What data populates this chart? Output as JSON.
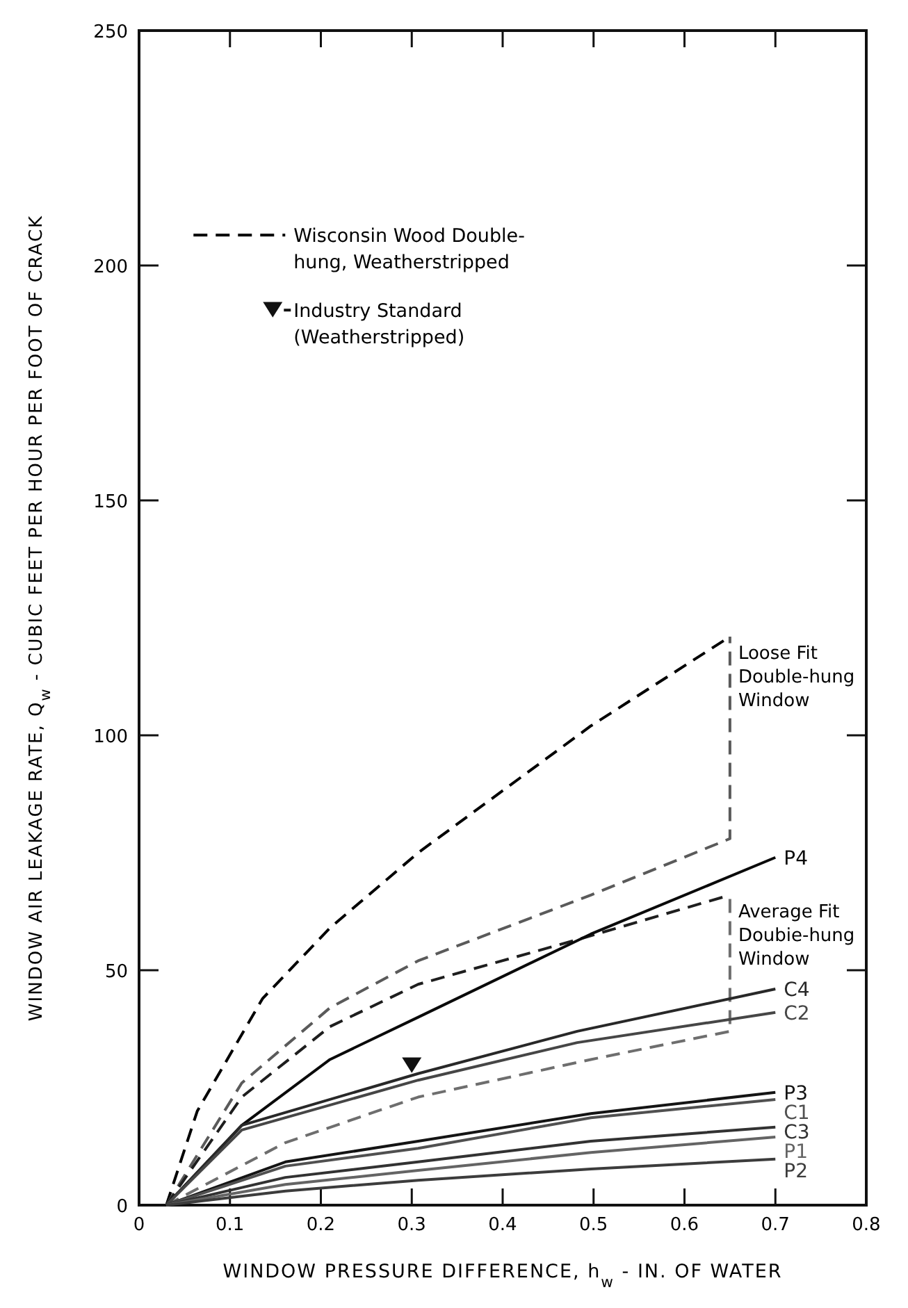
{
  "chart_data": {
    "type": "line",
    "xlabel": "WINDOW PRESSURE DIFFERENCE, h$_{w}$ - IN. OF WATER",
    "ylabel": "WINDOW AIR LEAKAGE RATE, Q$_{w}$ - CUBIC FEET PER HOUR PER FOOT OF CRACK",
    "xlim": [
      0,
      0.8
    ],
    "xticks": [
      0,
      0.1,
      0.2,
      0.3,
      0.4,
      0.5,
      0.6,
      0.7,
      0.8
    ],
    "ylim": [
      0,
      250
    ],
    "yticks": [
      0,
      50,
      100,
      150,
      200,
      250
    ],
    "grid": false,
    "legend": "top left",
    "series": [
      {
        "name": "Wisconsin Wood Double-hung, Weatherstripped",
        "color": "#000000",
        "line_style": "dashed",
        "x": [
          0.03,
          0.064,
          0.136,
          0.21,
          0.307,
          0.497,
          0.65
        ],
        "values": [
          0,
          20,
          44,
          59,
          75,
          102,
          121
        ]
      },
      {
        "color": "#5a5a5a",
        "line_style": "dashed",
        "x": [
          0.03,
          0.113,
          0.21,
          0.307,
          0.497,
          0.65,
          0.65
        ],
        "values": [
          0,
          26,
          42,
          52,
          66,
          78,
          121
        ]
      },
      {
        "color": "#1e1e1e",
        "line_style": "dashed",
        "x": [
          0.03,
          0.113,
          0.21,
          0.307,
          0.482,
          0.65
        ],
        "values": [
          0,
          23,
          38,
          47,
          56.5,
          66
        ]
      },
      {
        "color": "#6e6e6e",
        "line_style": "dashed",
        "x": [
          0.03,
          0.161,
          0.307,
          0.497,
          0.65,
          0.65
        ],
        "values": [
          0,
          13.3,
          23,
          31,
          37,
          66
        ]
      },
      {
        "name": "P4",
        "color": "#0a0a0a",
        "line_style": "solid",
        "x": [
          0.03,
          0.113,
          0.21,
          0.307,
          0.497,
          0.7
        ],
        "values": [
          0,
          17,
          31,
          40,
          57.7,
          74
        ]
      },
      {
        "name": "C4",
        "color": "#282828",
        "line_style": "solid",
        "x": [
          0.03,
          0.113,
          0.307,
          0.482,
          0.7
        ],
        "values": [
          0,
          17,
          28,
          37,
          46
        ]
      },
      {
        "name": "C2",
        "color": "#464646",
        "line_style": "solid",
        "x": [
          0.03,
          0.113,
          0.307,
          0.482,
          0.7
        ],
        "values": [
          0,
          16,
          26.6,
          34.6,
          41
        ]
      },
      {
        "name": "P3",
        "color": "#141414",
        "line_style": "solid",
        "x": [
          0.03,
          0.161,
          0.307,
          0.497,
          0.7
        ],
        "values": [
          0,
          9.2,
          13.6,
          19.5,
          24
        ]
      },
      {
        "name": "C1",
        "color": "#505050",
        "line_style": "solid",
        "x": [
          0.03,
          0.161,
          0.307,
          0.497,
          0.7
        ],
        "values": [
          0,
          8.3,
          12.1,
          18.6,
          22.5
        ]
      },
      {
        "name": "C3",
        "color": "#323232",
        "line_style": "solid",
        "x": [
          0.03,
          0.161,
          0.307,
          0.497,
          0.7
        ],
        "values": [
          0,
          5.9,
          9.2,
          13.6,
          16.6
        ]
      },
      {
        "name": "P1",
        "color": "#646464",
        "line_style": "solid",
        "x": [
          0.03,
          0.161,
          0.307,
          0.497,
          0.7
        ],
        "values": [
          0,
          4.4,
          7.4,
          11.2,
          14.5
        ]
      },
      {
        "name": "P2",
        "color": "#3c3c3c",
        "line_style": "solid",
        "x": [
          0.03,
          0.161,
          0.307,
          0.497,
          0.7
        ],
        "values": [
          0,
          3,
          5.3,
          7.7,
          9.8
        ]
      },
      {
        "name": "Industry Standard (Weatherstripped)",
        "type": "scatter",
        "marker": "triangle",
        "color": "#111111",
        "x": [
          0.3
        ],
        "values": [
          30
        ]
      }
    ],
    "annotations": [
      {
        "text": "Loose Fit Double-hung Window",
        "x": 0.65,
        "y": 121
      },
      {
        "text": "Average Fit Doubie-hung Window",
        "x": 0.65,
        "y": 66
      }
    ]
  }
}
